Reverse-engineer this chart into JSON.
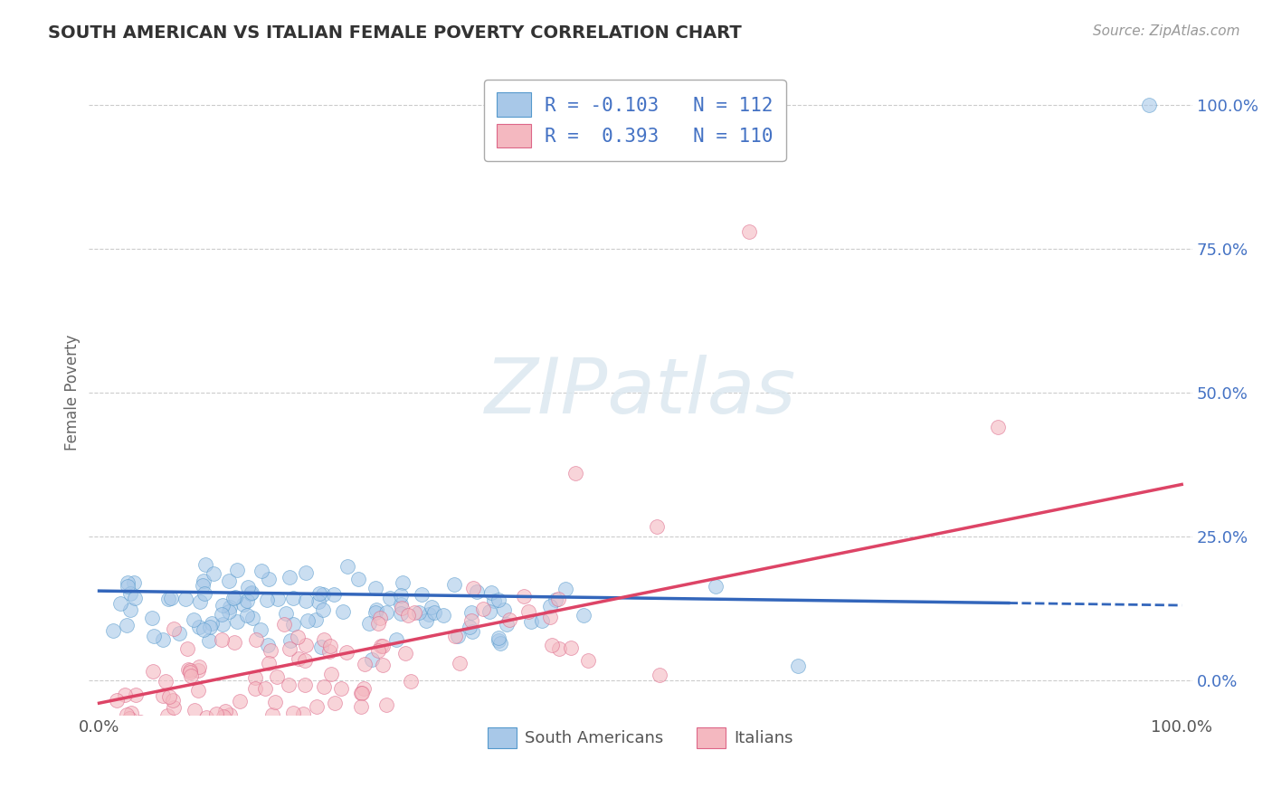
{
  "title": "SOUTH AMERICAN VS ITALIAN FEMALE POVERTY CORRELATION CHART",
  "source": "Source: ZipAtlas.com",
  "ylabel": "Female Poverty",
  "blue_R": -0.103,
  "blue_N": 112,
  "pink_R": 0.393,
  "pink_N": 110,
  "blue_color": "#a8c8e8",
  "pink_color": "#f4b8c0",
  "blue_edge_color": "#5599cc",
  "pink_edge_color": "#dd6688",
  "blue_line_color": "#3366bb",
  "pink_line_color": "#dd4466",
  "title_color": "#333333",
  "axis_label_color": "#666666",
  "tick_color": "#555555",
  "grid_color": "#cccccc",
  "background_color": "#ffffff",
  "right_ytick_color": "#4472c4",
  "watermark_color": "#dce8f0",
  "legend_text_color": "#4472c4"
}
